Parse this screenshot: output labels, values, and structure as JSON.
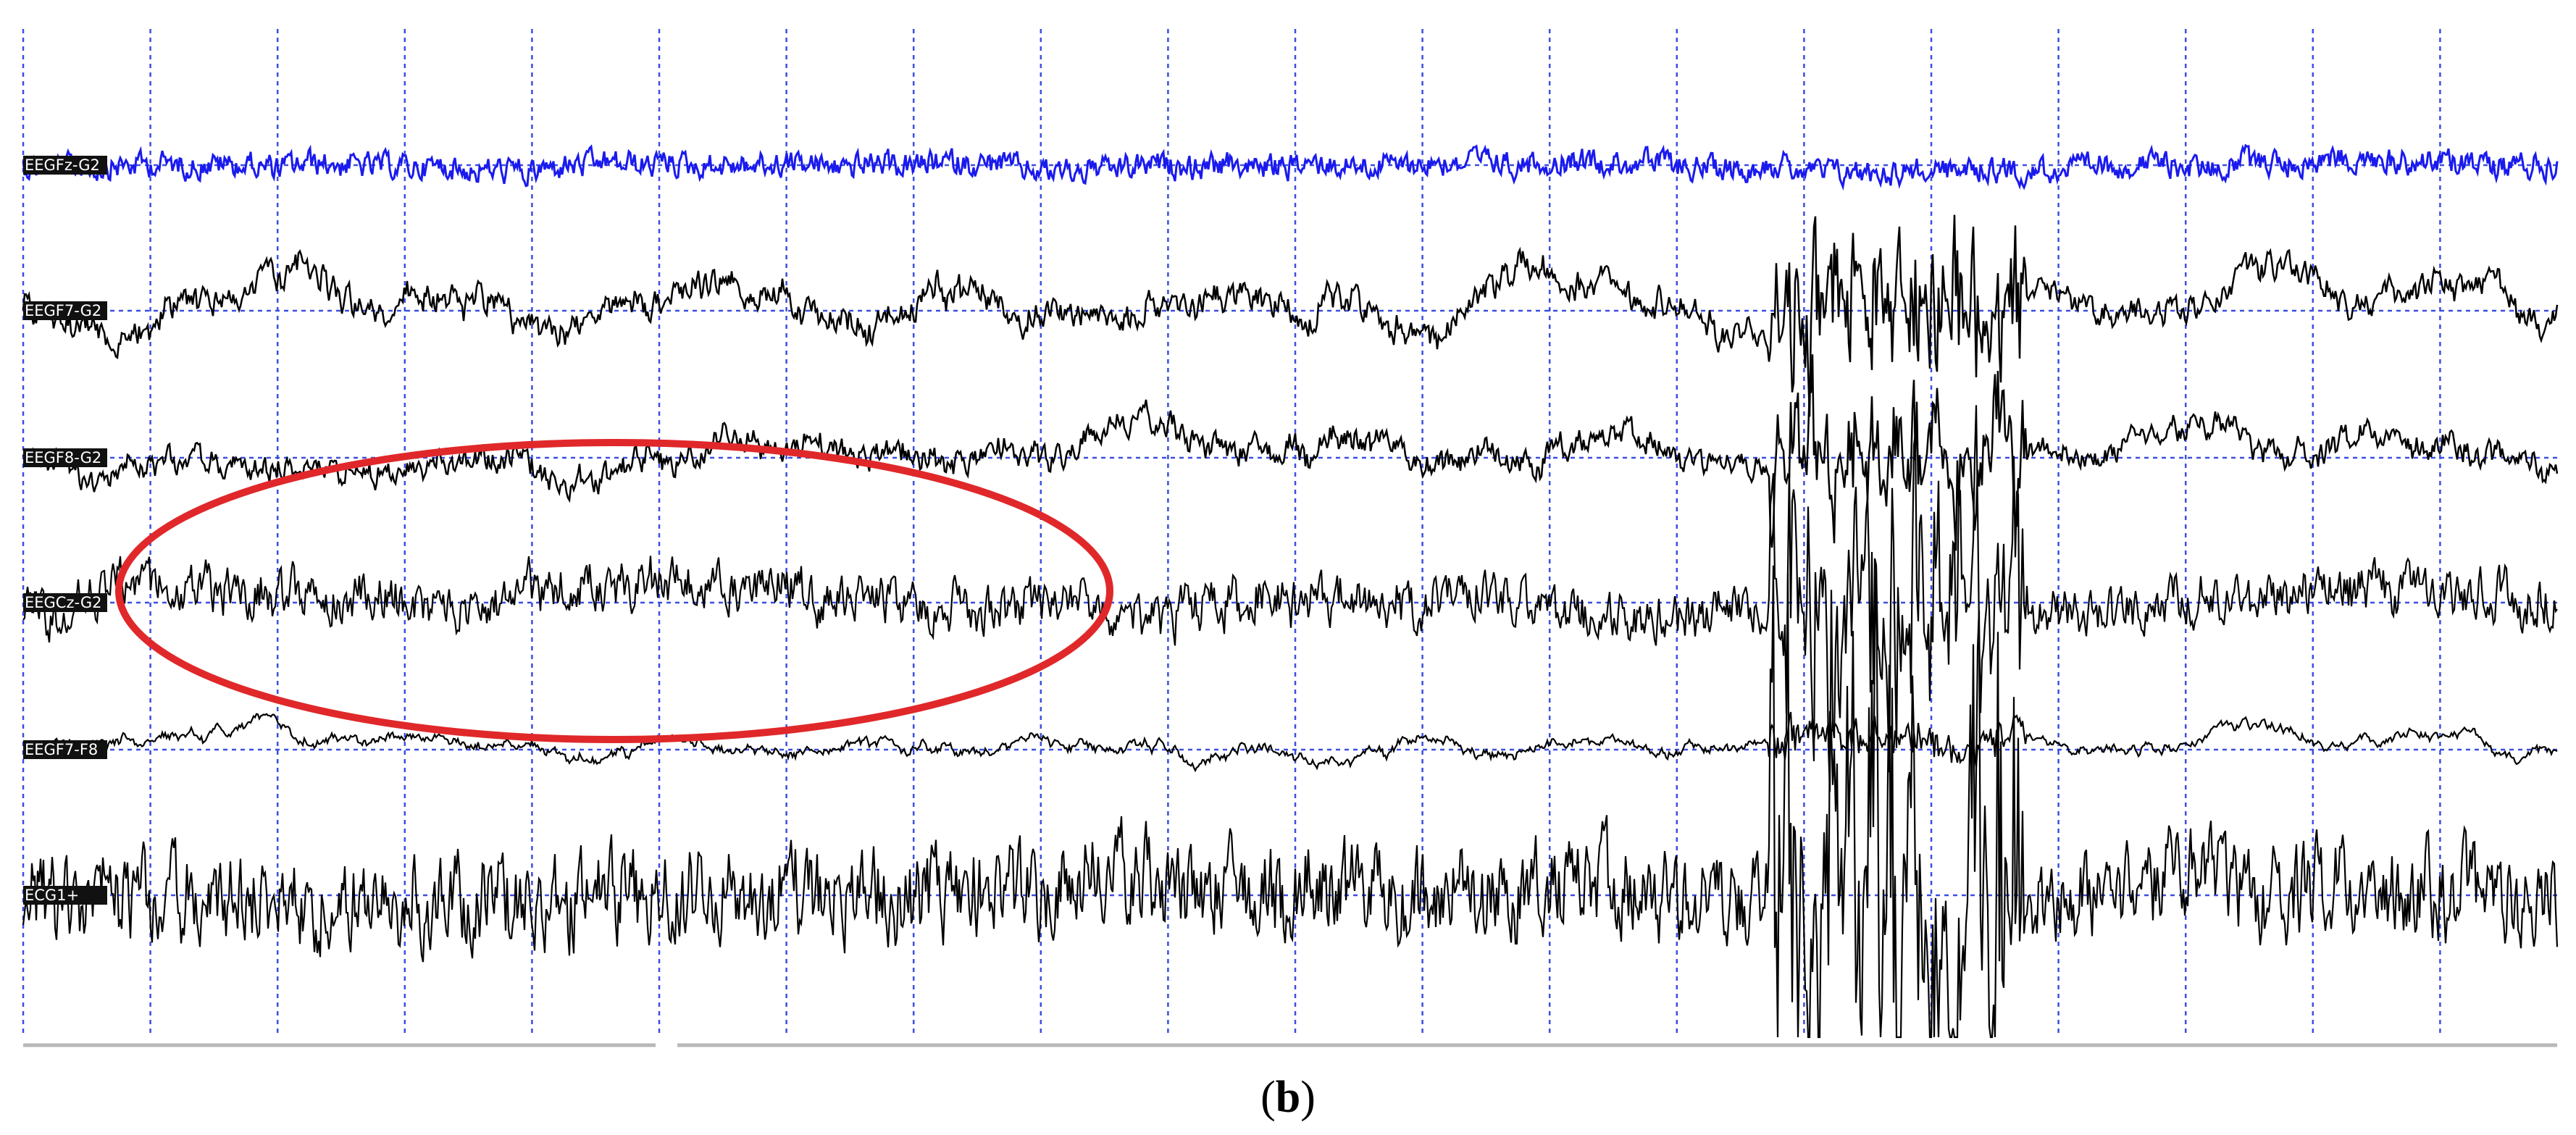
{
  "channels": [
    "EEGFz-G2",
    "EEGF7-G2",
    "EEGF8-G2",
    "EEGCz-G2",
    "EEGF7-F8",
    "ECG1+"
  ],
  "caption": {
    "open": "(",
    "letter": "b",
    "close": ")"
  }
}
